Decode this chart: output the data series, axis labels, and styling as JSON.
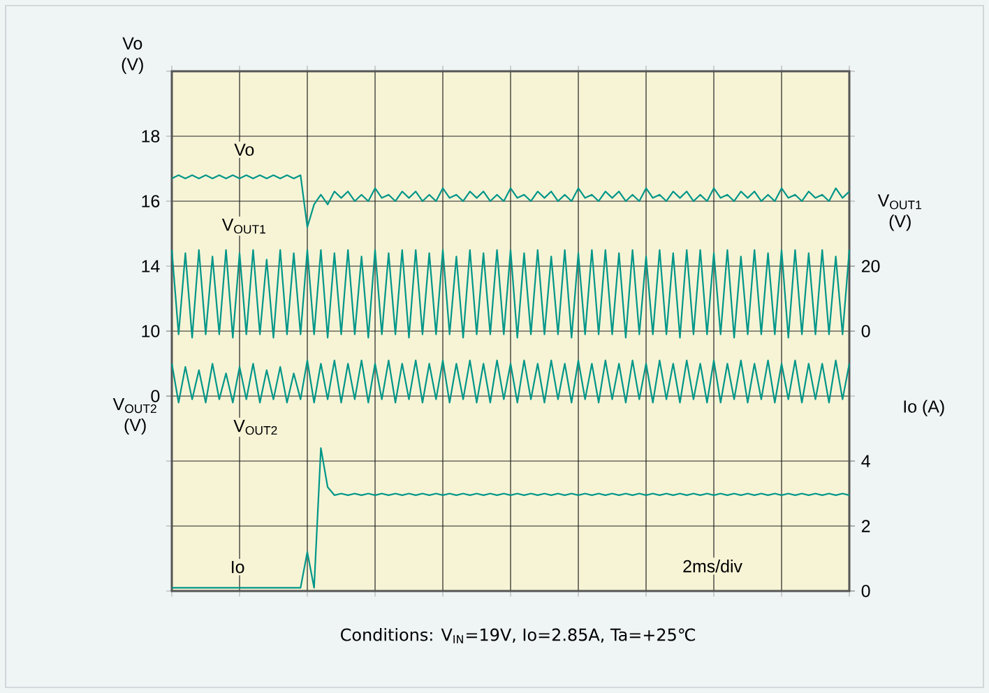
{
  "chart_data": [
    {
      "type": "line",
      "ylabel": "Vo (V)",
      "annotations": [
        "2ms/div",
        "Conditions: V$_{IN}$=19V, Io=2.85A, Ta=+25℃"
      ],
      "categories": [
        null,
        null,
        null,
        null,
        null,
        null,
        null,
        null,
        null,
        null,
        null,
        null,
        null,
        null,
        null,
        null,
        null,
        null,
        null,
        null,
        null,
        null,
        null,
        null,
        null,
        null,
        null,
        null,
        null,
        null,
        null,
        null,
        null,
        null,
        null,
        null,
        null,
        null,
        null,
        null,
        null,
        null,
        null,
        null,
        null,
        null,
        null,
        null,
        null,
        null,
        null,
        null,
        null,
        null,
        null,
        null,
        null,
        null,
        null,
        null,
        null,
        null,
        null,
        null,
        null,
        null,
        null,
        null,
        null,
        null,
        null,
        null,
        null,
        null,
        null,
        null,
        null,
        null,
        null,
        null,
        null,
        null,
        null,
        null,
        null,
        null,
        null,
        null,
        null,
        null,
        null,
        null,
        null,
        null,
        null,
        null,
        null,
        null,
        null,
        null,
        null
      ],
      "series": [
        {
          "name": "Vo",
          "color": "#009688",
          "values": [
            16.7,
            16.8,
            16.7,
            16.8,
            16.7,
            16.8,
            16.7,
            16.8,
            16.7,
            16.8,
            16.7,
            16.8,
            16.7,
            16.8,
            16.7,
            16.8,
            16.7,
            16.8,
            16.7,
            16.8,
            15.2,
            15.9,
            16.2,
            15.9,
            16.3,
            16.1,
            16.3,
            16.0,
            16.2,
            16.0,
            16.4,
            16.1,
            16.2,
            16.0,
            16.3,
            16.1,
            16.3,
            16.0,
            16.2,
            16.0,
            16.4,
            16.1,
            16.2,
            16.0,
            16.3,
            16.1,
            16.3,
            16.0,
            16.2,
            16.0,
            16.4,
            16.1,
            16.2,
            16.0,
            16.3,
            16.1,
            16.3,
            16.0,
            16.2,
            16.0,
            16.4,
            16.1,
            16.2,
            16.0,
            16.3,
            16.1,
            16.3,
            16.0,
            16.2,
            16.0,
            16.4,
            16.1,
            16.2,
            16.0,
            16.3,
            16.1,
            16.3,
            16.0,
            16.2,
            16.0,
            16.4,
            16.1,
            16.2,
            16.0,
            16.3,
            16.1,
            16.3,
            16.0,
            16.2,
            16.0,
            16.4,
            16.1,
            16.2,
            16.0,
            16.3,
            16.1,
            16.2,
            16.0,
            16.4,
            16.1,
            16.3
          ]
        }
      ],
      "ylim": [
        4,
        20
      ],
      "yticks": [
        {
          "value": 4,
          "label": null
        },
        {
          "value": 6,
          "label": null
        },
        {
          "value": 8,
          "label": null
        },
        {
          "value": 10,
          "label": null
        },
        {
          "value": 12,
          "label": null
        },
        14,
        16,
        18,
        {
          "value": 20,
          "label": null
        }
      ],
      "tick_labels": "y",
      "grid": true,
      "legend": false,
      "marker": "none",
      "line_style": "solid"
    },
    {
      "type": "line",
      "ylabel": "V$_{OUT1}$ (V)",
      "categories": [
        null,
        null,
        null,
        null,
        null,
        null,
        null,
        null,
        null,
        null,
        null,
        null,
        null,
        null,
        null,
        null,
        null,
        null,
        null,
        null,
        null,
        null,
        null,
        null,
        null,
        null,
        null,
        null,
        null,
        null,
        null,
        null,
        null,
        null,
        null,
        null,
        null,
        null,
        null,
        null,
        null,
        null,
        null,
        null,
        null,
        null,
        null,
        null,
        null,
        null,
        null,
        null,
        null,
        null,
        null,
        null,
        null,
        null,
        null,
        null,
        null,
        null,
        null,
        null,
        null,
        null,
        null,
        null,
        null,
        null,
        null,
        null,
        null,
        null,
        null,
        null,
        null,
        null,
        null,
        null,
        null,
        null,
        null,
        null,
        null,
        null,
        null,
        null,
        null,
        null,
        null,
        null,
        null,
        null,
        null,
        null,
        null,
        null,
        null,
        null,
        null
      ],
      "series": [
        {
          "name": "V$_{OUT1}$",
          "color": "#009688",
          "values": [
            25,
            -1,
            24,
            -2,
            25,
            -1,
            23,
            -1,
            25,
            -2,
            24,
            -1,
            25,
            -1,
            22,
            -2,
            25,
            -1,
            24,
            -1,
            25,
            -1,
            25,
            -2,
            24,
            -1,
            25,
            -1,
            23,
            -2,
            25,
            -1,
            24,
            -1,
            25,
            -2,
            25,
            -1,
            24,
            -1,
            25,
            -1,
            23,
            -2,
            25,
            -1,
            24,
            -1,
            25,
            -1,
            25,
            -2,
            24,
            -1,
            25,
            -1,
            23,
            -1,
            25,
            -2,
            24,
            -1,
            25,
            -1,
            25,
            -1,
            24,
            -2,
            25,
            -1,
            23,
            -1,
            25,
            -1,
            24,
            -2,
            25,
            -1,
            25,
            -1,
            24,
            -1,
            25,
            -2,
            23,
            -1,
            25,
            -1,
            24,
            -1,
            25,
            -2,
            25,
            -1,
            24,
            -1,
            25,
            -1,
            23,
            -1,
            25
          ]
        }
      ],
      "ylim": [
        -80,
        80
      ],
      "yticks": [
        0,
        20
      ],
      "tick_labels": "y",
      "legend": false,
      "marker": "none",
      "line_style": "solid"
    },
    {
      "type": "line",
      "ylabel": "V$_{OUT2}$ (V)",
      "categories": [
        null,
        null,
        null,
        null,
        null,
        null,
        null,
        null,
        null,
        null,
        null,
        null,
        null,
        null,
        null,
        null,
        null,
        null,
        null,
        null,
        null,
        null,
        null,
        null,
        null,
        null,
        null,
        null,
        null,
        null,
        null,
        null,
        null,
        null,
        null,
        null,
        null,
        null,
        null,
        null,
        null,
        null,
        null,
        null,
        null,
        null,
        null,
        null,
        null,
        null,
        null,
        null,
        null,
        null,
        null,
        null,
        null,
        null,
        null,
        null,
        null,
        null,
        null,
        null,
        null,
        null,
        null,
        null,
        null,
        null,
        null,
        null,
        null,
        null,
        null,
        null,
        null,
        null,
        null,
        null,
        null,
        null,
        null,
        null,
        null,
        null,
        null,
        null,
        null,
        null,
        null,
        null,
        null,
        null,
        null,
        null,
        null,
        null,
        null,
        null,
        null
      ],
      "series": [
        {
          "name": "V$_{OUT2}$",
          "color": "#009688",
          "values": [
            5,
            -1,
            4.5,
            -0.5,
            4,
            -1,
            5,
            -0.5,
            3.5,
            -1,
            4.5,
            -0.5,
            5,
            -1,
            4,
            -0.5,
            4.5,
            -1,
            3.5,
            -0.5,
            5.5,
            -1,
            5,
            -0.5,
            5.5,
            -1,
            5,
            -0.5,
            5.5,
            -1,
            5,
            -0.5,
            5.5,
            -1,
            5,
            -0.5,
            5.5,
            -1,
            5,
            -0.5,
            5.5,
            -1,
            5,
            -0.5,
            5.5,
            -1,
            5,
            -1,
            5.5,
            -0.5,
            5,
            -1,
            5.5,
            -0.5,
            5,
            -1,
            5.5,
            -0.5,
            5,
            -1,
            5.5,
            -0.5,
            5,
            -1,
            5.5,
            -0.5,
            5,
            -1,
            5.5,
            -0.5,
            5,
            -1,
            5.5,
            -0.5,
            5,
            -1,
            5.5,
            -0.5,
            5,
            -1,
            5.5,
            -1,
            5,
            -0.5,
            5.5,
            -1,
            5,
            -0.5,
            5.5,
            -1,
            5,
            -0.5,
            5.5,
            -1,
            5,
            -0.5,
            5,
            -1,
            5.5,
            -0.5,
            5
          ]
        }
      ],
      "ylim": [
        -30,
        50
      ],
      "yticks": [
        0,
        10
      ],
      "tick_labels": "y",
      "legend": false,
      "marker": "none",
      "line_style": "solid"
    },
    {
      "type": "line",
      "ylabel": "Io (A)",
      "categories": [
        null,
        null,
        null,
        null,
        null,
        null,
        null,
        null,
        null,
        null,
        null,
        null,
        null,
        null,
        null,
        null,
        null,
        null,
        null,
        null,
        null,
        null,
        null,
        null,
        null,
        null,
        null,
        null,
        null,
        null,
        null,
        null,
        null,
        null,
        null,
        null,
        null,
        null,
        null,
        null,
        null,
        null,
        null,
        null,
        null,
        null,
        null,
        null,
        null,
        null,
        null,
        null,
        null,
        null,
        null,
        null,
        null,
        null,
        null,
        null,
        null,
        null,
        null,
        null,
        null,
        null,
        null,
        null,
        null,
        null,
        null,
        null,
        null,
        null,
        null,
        null,
        null,
        null,
        null,
        null,
        null,
        null,
        null,
        null,
        null,
        null,
        null,
        null,
        null,
        null,
        null,
        null,
        null,
        null,
        null,
        null,
        null,
        null,
        null,
        null,
        null
      ],
      "series": [
        {
          "name": "Io",
          "color": "#009688",
          "values": [
            0.1,
            0.1,
            0.1,
            0.1,
            0.1,
            0.1,
            0.1,
            0.1,
            0.1,
            0.1,
            0.1,
            0.1,
            0.1,
            0.1,
            0.1,
            0.1,
            0.1,
            0.1,
            0.1,
            0.1,
            1.2,
            0.1,
            4.4,
            3.2,
            2.95,
            3.0,
            2.95,
            3.0,
            2.95,
            3.0,
            2.95,
            3.0,
            2.95,
            3.0,
            2.95,
            3.0,
            2.95,
            3.0,
            2.95,
            3.0,
            2.95,
            3.0,
            2.95,
            3.0,
            2.95,
            3.0,
            2.95,
            3.0,
            2.95,
            3.0,
            2.95,
            3.0,
            2.95,
            3.0,
            2.95,
            3.0,
            2.95,
            3.0,
            2.95,
            3.0,
            2.95,
            3.0,
            2.95,
            3.0,
            2.95,
            3.0,
            2.95,
            3.0,
            2.95,
            3.0,
            2.95,
            3.0,
            2.95,
            3.0,
            2.95,
            3.0,
            2.95,
            3.0,
            2.95,
            3.0,
            2.95,
            3.0,
            2.95,
            3.0,
            2.95,
            3.0,
            2.95,
            3.0,
            2.95,
            3.0,
            2.95,
            3.0,
            2.95,
            3.0,
            2.95,
            3.0,
            2.95,
            3.0,
            2.95,
            3.0,
            2.95
          ]
        }
      ],
      "ylim": [
        0,
        16
      ],
      "yticks": [
        0,
        2,
        4
      ],
      "tick_labels": "y",
      "legend": false,
      "marker": "none",
      "line_style": "solid"
    }
  ]
}
